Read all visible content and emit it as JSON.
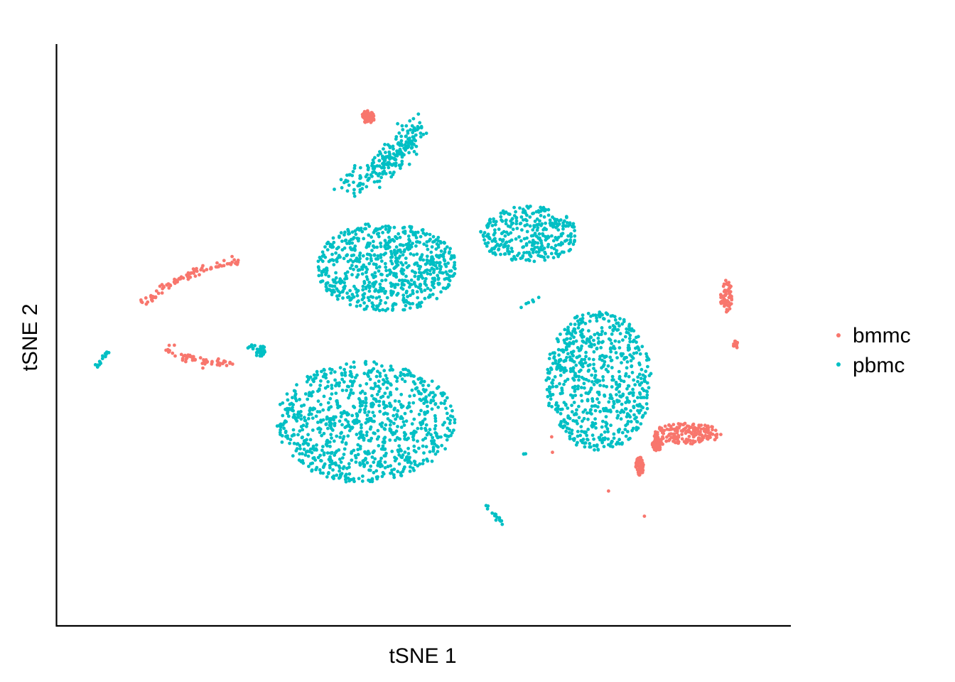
{
  "chart_data": {
    "type": "scatter",
    "xlabel": "tSNE 1",
    "ylabel": "tSNE 2",
    "axis_ticks": "none",
    "grid": false,
    "legend_placement": "right",
    "xlim": [
      -47,
      47
    ],
    "ylim": [
      -45,
      45
    ],
    "series": [
      {
        "name": "bmmc",
        "color": "#F8766D",
        "clusters": [
          {
            "shape": "arc",
            "center": [
              -7.2,
              33.8
            ],
            "approx_cells": 60
          },
          {
            "shape": "arc_path",
            "path": [
              [
                -36.2,
                4.8
              ],
              [
                -33.0,
                7.6
              ],
              [
                -29.5,
                9.8
              ],
              [
                -26.5,
                10.5
              ],
              [
                -23.7,
                11.5
              ]
            ],
            "approx_cells": 90
          },
          {
            "shape": "arc_path",
            "path": [
              [
                -32.9,
                -2.1
              ],
              [
                -30.6,
                -3.5
              ],
              [
                -27.6,
                -4.1
              ],
              [
                -24.6,
                -4.3
              ]
            ],
            "approx_cells": 60
          },
          {
            "shape": "blob",
            "center": [
              33.8,
              -15.3
            ],
            "approx_cells": 170
          },
          {
            "shape": "blob",
            "center": [
              38.8,
              6.0
            ],
            "approx_cells": 60
          },
          {
            "shape": "blob",
            "center": [
              40.0,
              -1.5
            ],
            "approx_cells": 20
          },
          {
            "shape": "blob",
            "center": [
              30.0,
              -17.0
            ],
            "approx_cells": 70
          },
          {
            "shape": "blob",
            "center": [
              27.7,
              -20.3
            ],
            "approx_cells": 70
          },
          {
            "shape": "outlier",
            "points": [
              [
                16.4,
                -15.8
              ],
              [
                16.5,
                -18.2
              ],
              [
                28.3,
                -28.1
              ],
              [
                23.7,
                -24.2
              ]
            ]
          }
        ]
      },
      {
        "name": "pbmc",
        "color": "#00BFC4",
        "clusters": [
          {
            "shape": "blob",
            "center": [
              -4.8,
              10.5
            ],
            "approx_cells": 700
          },
          {
            "shape": "blob",
            "center": [
              -7.5,
              -13.5
            ],
            "approx_cells": 900
          },
          {
            "shape": "blob",
            "center": [
              -21.5,
              -2.5
            ],
            "approx_cells": 30
          },
          {
            "shape": "arc_path",
            "path": [
              [
                -9.5,
                22.7
              ],
              [
                -6.0,
                25.5
              ],
              [
                -2.8,
                29.0
              ],
              [
                -1.1,
                32.2
              ]
            ],
            "approx_cells": 220
          },
          {
            "shape": "blob",
            "center": [
              13.5,
              15.6
            ],
            "approx_cells": 320
          },
          {
            "shape": "blob",
            "center": [
              22.4,
              -7.2
            ],
            "approx_cells": 700
          },
          {
            "shape": "arc_path",
            "path": [
              [
                -42.0,
                -5.0
              ],
              [
                -41.3,
                -3.6
              ],
              [
                -40.5,
                -2.4
              ]
            ],
            "approx_cells": 15
          },
          {
            "shape": "arc_path",
            "path": [
              [
                8.1,
                -26.5
              ],
              [
                9.6,
                -28.5
              ],
              [
                10.8,
                -30.2
              ]
            ],
            "approx_cells": 15
          },
          {
            "shape": "blob",
            "center": [
              13.1,
              -18.5
            ],
            "approx_cells": 3
          },
          {
            "shape": "arc_path",
            "path": [
              [
                12.7,
                4.0
              ],
              [
                13.4,
                4.9
              ],
              [
                14.6,
                6.0
              ]
            ],
            "approx_cells": 6
          }
        ]
      }
    ]
  }
}
